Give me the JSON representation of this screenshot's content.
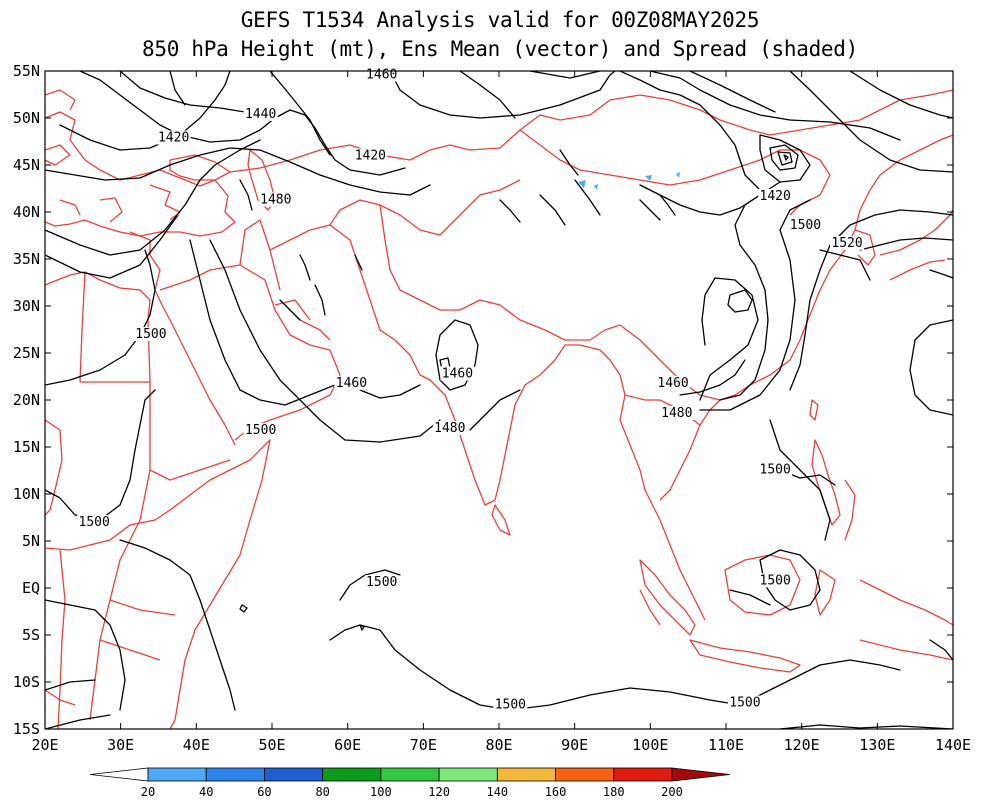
{
  "title_line1": "GEFS T1534 Analysis valid for 00Z08MAY2025",
  "title_line2": "850 hPa Height (mt), Ens Mean (vector) and Spread (shaded)",
  "map": {
    "lon_range": [
      20,
      140
    ],
    "lat_range": [
      -15,
      55
    ],
    "lon_ticks": [
      {
        "value": 20,
        "label": "20E"
      },
      {
        "value": 30,
        "label": "30E"
      },
      {
        "value": 40,
        "label": "40E"
      },
      {
        "value": 50,
        "label": "50E"
      },
      {
        "value": 60,
        "label": "60E"
      },
      {
        "value": 70,
        "label": "70E"
      },
      {
        "value": 80,
        "label": "80E"
      },
      {
        "value": 90,
        "label": "90E"
      },
      {
        "value": 100,
        "label": "100E"
      },
      {
        "value": 110,
        "label": "110E"
      },
      {
        "value": 120,
        "label": "120E"
      },
      {
        "value": 130,
        "label": "130E"
      },
      {
        "value": 140,
        "label": "140E"
      }
    ],
    "lat_ticks": [
      {
        "value": 55,
        "label": "55N"
      },
      {
        "value": 50,
        "label": "50N"
      },
      {
        "value": 45,
        "label": "45N"
      },
      {
        "value": 40,
        "label": "40N"
      },
      {
        "value": 35,
        "label": "35N"
      },
      {
        "value": 30,
        "label": "30N"
      },
      {
        "value": 25,
        "label": "25N"
      },
      {
        "value": 20,
        "label": "20N"
      },
      {
        "value": 15,
        "label": "15N"
      },
      {
        "value": 10,
        "label": "10N"
      },
      {
        "value": 5,
        "label": "5N"
      },
      {
        "value": 0,
        "label": "EQ"
      },
      {
        "value": -5,
        "label": "5S"
      },
      {
        "value": -10,
        "label": "10S"
      },
      {
        "value": -15,
        "label": "15S"
      }
    ],
    "coast_color": "#e8413c",
    "contour_color": "#000000",
    "contour_labels": [
      {
        "text": "1460",
        "lon": 64.5,
        "lat": 54.3
      },
      {
        "text": "1440",
        "lon": 48.5,
        "lat": 50.1
      },
      {
        "text": "1420",
        "lon": 37.0,
        "lat": 47.6
      },
      {
        "text": "1420",
        "lon": 63.0,
        "lat": 45.7
      },
      {
        "text": "1480",
        "lon": 50.5,
        "lat": 41.0
      },
      {
        "text": "1420",
        "lon": 116.5,
        "lat": 41.4
      },
      {
        "text": "1500",
        "lon": 120.5,
        "lat": 38.3
      },
      {
        "text": "1520",
        "lon": 126.0,
        "lat": 36.4
      },
      {
        "text": "1500",
        "lon": 34.0,
        "lat": 26.7
      },
      {
        "text": "1460",
        "lon": 60.5,
        "lat": 21.5
      },
      {
        "text": "1460",
        "lon": 74.5,
        "lat": 22.5
      },
      {
        "text": "1460",
        "lon": 103.0,
        "lat": 21.5
      },
      {
        "text": "1480",
        "lon": 103.5,
        "lat": 18.3
      },
      {
        "text": "1500",
        "lon": 48.5,
        "lat": 16.5
      },
      {
        "text": "1480",
        "lon": 73.5,
        "lat": 16.7
      },
      {
        "text": "1500",
        "lon": 116.5,
        "lat": 12.3
      },
      {
        "text": "1500",
        "lon": 26.5,
        "lat": 6.7
      },
      {
        "text": "1500",
        "lon": 64.5,
        "lat": 0.3
      },
      {
        "text": "1500",
        "lon": 116.5,
        "lat": 0.5
      },
      {
        "text": "1500",
        "lon": 81.5,
        "lat": -12.7
      },
      {
        "text": "1500",
        "lon": 112.5,
        "lat": -12.5
      }
    ]
  },
  "colorbar": {
    "colors": [
      "#ffffff",
      "#4ea9f5",
      "#2c84ec",
      "#1d5fd0",
      "#0e9d1a",
      "#34c640",
      "#7ee87a",
      "#f4b93c",
      "#f46414",
      "#e01c0e",
      "#a40a0a"
    ],
    "labels": [
      "20",
      "40",
      "60",
      "80",
      "100",
      "120",
      "140",
      "160",
      "180",
      "200"
    ]
  }
}
